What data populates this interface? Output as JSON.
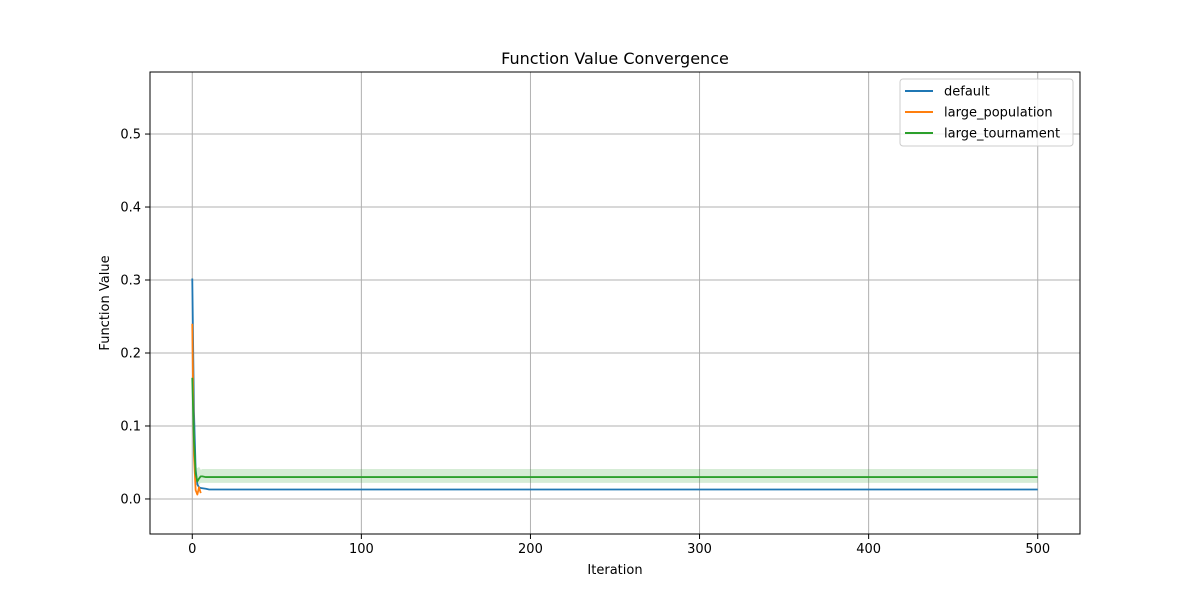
{
  "chart_data": {
    "type": "line",
    "title": "Function Value Convergence",
    "xlabel": "Iteration",
    "ylabel": "Function Value",
    "xlim": [
      -25,
      525
    ],
    "ylim": [
      -0.048,
      0.585
    ],
    "xticks": [
      0,
      100,
      200,
      300,
      400,
      500
    ],
    "yticks": [
      0.0,
      0.1,
      0.2,
      0.3,
      0.4,
      0.5
    ],
    "xtick_labels": [
      "0",
      "100",
      "200",
      "300",
      "400",
      "500"
    ],
    "ytick_labels": [
      "0.0",
      "0.1",
      "0.2",
      "0.3",
      "0.4",
      "0.5"
    ],
    "grid": true,
    "legend_position": "top-right",
    "series": [
      {
        "name": "default",
        "color": "#1f77b4",
        "x": [
          0,
          1,
          2,
          3,
          4,
          5,
          8,
          10,
          20,
          50,
          100,
          200,
          300,
          400,
          500
        ],
        "y": [
          0.302,
          0.12,
          0.04,
          0.02,
          0.016,
          0.015,
          0.014,
          0.013,
          0.013,
          0.013,
          0.013,
          0.013,
          0.013,
          0.013,
          0.013
        ]
      },
      {
        "name": "large_population",
        "color": "#ff7f0e",
        "x": [
          0,
          1,
          2,
          3,
          4,
          5
        ],
        "y": [
          0.24,
          0.06,
          0.012,
          0.006,
          0.016,
          0.008
        ]
      },
      {
        "name": "large_tournament",
        "color": "#2ca02c",
        "x": [
          0,
          1,
          2,
          3,
          4,
          5,
          6,
          8,
          10,
          20,
          50,
          100,
          200,
          300,
          400,
          500
        ],
        "y": [
          0.166,
          0.08,
          0.035,
          0.024,
          0.028,
          0.031,
          0.031,
          0.03,
          0.03,
          0.03,
          0.03,
          0.03,
          0.03,
          0.03,
          0.03,
          0.03
        ],
        "band_lower": [
          0.166,
          0.06,
          0.025,
          0.018,
          0.02,
          0.022,
          0.022,
          0.022,
          0.022,
          0.022,
          0.022,
          0.022,
          0.022,
          0.022,
          0.022,
          0.022
        ],
        "band_upper": [
          0.166,
          0.1,
          0.045,
          0.042,
          0.044,
          0.04,
          0.041,
          0.041,
          0.041,
          0.041,
          0.041,
          0.041,
          0.041,
          0.041,
          0.041,
          0.041
        ]
      }
    ]
  }
}
